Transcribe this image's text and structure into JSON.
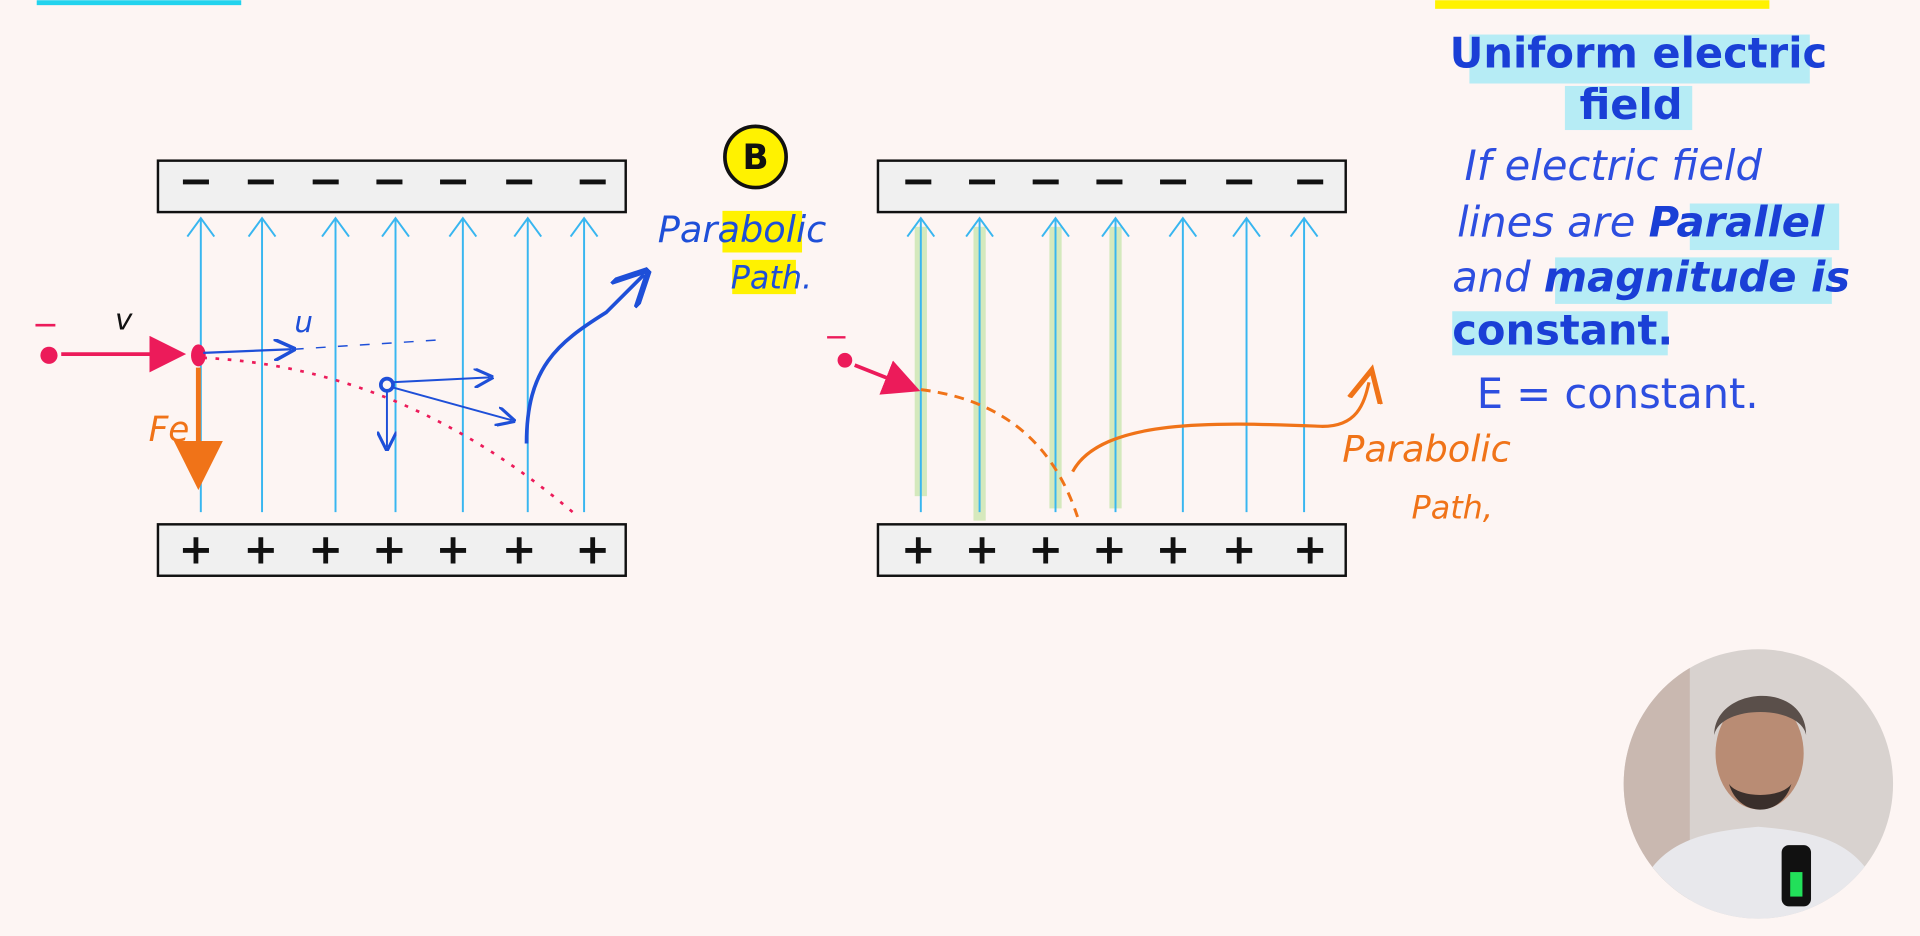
{
  "left_panel": {
    "top_plate_signs": [
      "−",
      "−",
      "−",
      "−",
      "−",
      "−",
      "−"
    ],
    "bottom_plate_signs": [
      "+",
      "+",
      "+",
      "+",
      "+",
      "+",
      "+"
    ],
    "charge_sign": "−",
    "labels": {
      "velocity": "v",
      "velocity_component": "u",
      "force": "Fe",
      "panel_tag": "B",
      "path_title": "Parabolic",
      "path_subtitle": "Path."
    }
  },
  "right_panel": {
    "top_plate_signs": [
      "−",
      "−",
      "−",
      "−",
      "−",
      "−",
      "−"
    ],
    "bottom_plate_signs": [
      "+",
      "+",
      "+",
      "+",
      "+",
      "+",
      "+"
    ],
    "charge_sign": "−",
    "labels": {
      "path_title": "Parabolic",
      "path_subtitle": "Path,"
    }
  },
  "notes": {
    "title": [
      "Uniform electric",
      "field"
    ],
    "lines": [
      "If electric field",
      [
        "lines are",
        "Parallel"
      ],
      [
        "and",
        "magnitude is"
      ],
      "constant.",
      "E = constant."
    ]
  }
}
